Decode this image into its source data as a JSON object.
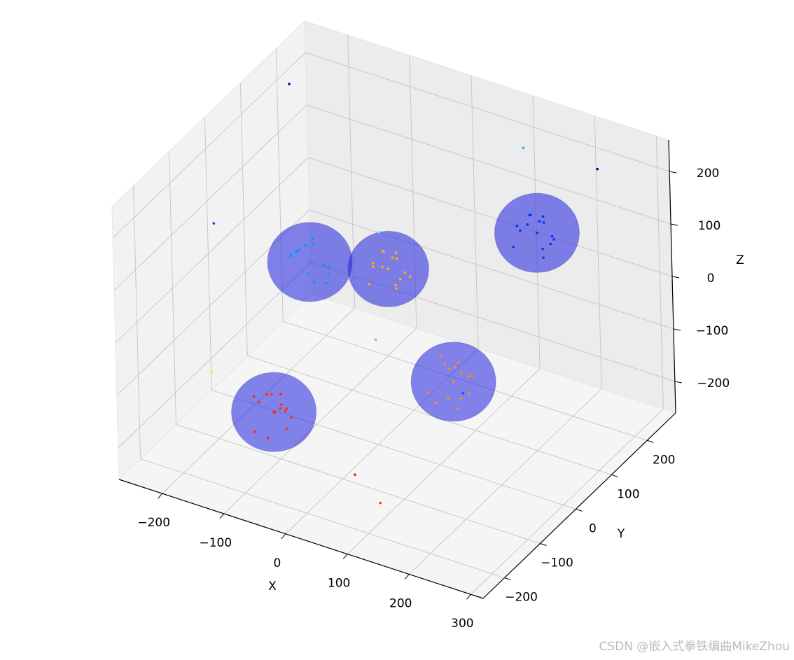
{
  "chart_data": {
    "type": "scatter3d",
    "xlabel": "X",
    "ylabel": "Y",
    "zlabel": "Z",
    "xlim": [
      -270,
      320
    ],
    "ylim": [
      -260,
      280
    ],
    "zlim": [
      -260,
      260
    ],
    "xticks": [
      {
        "value": -200,
        "label": "−200"
      },
      {
        "value": -100,
        "label": "−100"
      },
      0,
      100,
      200,
      300
    ],
    "yticks": [
      {
        "value": -200,
        "label": "−200"
      },
      {
        "value": -100,
        "label": "−100"
      },
      0,
      100,
      200
    ],
    "zticks": [
      {
        "value": -200,
        "label": "−200"
      },
      {
        "value": -100,
        "label": "−100"
      },
      0,
      100,
      200
    ],
    "grid": true,
    "sphere_color": "#2020e0",
    "spheres": [
      {
        "cx": -93,
        "cy": -128,
        "cz": -150,
        "radius": 65
      },
      {
        "cx": 120,
        "cy": 9,
        "cz": -100,
        "radius": 65
      },
      {
        "cx": -69,
        "cy": -59,
        "cz": 100,
        "radius": 65
      },
      {
        "cx": 1,
        "cy": 38,
        "cz": 50,
        "radius": 62
      },
      {
        "cx": 203,
        "cy": 109,
        "cz": 150,
        "radius": 65
      }
    ],
    "series": [
      {
        "color": "#ff2a00",
        "x": [
          -93,
          -110,
          -75,
          -120,
          -60,
          -98,
          -85,
          -130,
          -70,
          -100,
          -80,
          -115,
          -90,
          -65,
          -105
        ],
        "y": [
          -128,
          -140,
          -110,
          -100,
          -150,
          -125,
          -160,
          -120,
          -135,
          -95,
          -130,
          -145,
          -115,
          -140,
          -105
        ],
        "z": [
          -150,
          -130,
          -165,
          -145,
          -155,
          -120,
          -175,
          -140,
          -135,
          -160,
          -110,
          -185,
          -150,
          -125,
          -170
        ]
      },
      {
        "color": "#ff9000",
        "x": [
          120,
          100,
          140,
          110,
          150,
          125,
          90,
          135,
          115,
          105,
          145,
          128,
          98,
          118,
          132
        ],
        "y": [
          9,
          20,
          -5,
          30,
          0,
          15,
          -10,
          25,
          5,
          -15,
          18,
          -20,
          12,
          35,
          -2
        ],
        "z": [
          -100,
          -80,
          -115,
          -90,
          -105,
          -65,
          -120,
          -95,
          -75,
          -130,
          -85,
          -110,
          -60,
          -100,
          -140
        ]
      },
      {
        "color": "#0099ff",
        "x": [
          -69,
          -85,
          -50,
          -95,
          -60,
          -75,
          -40,
          -80,
          -65,
          -90,
          -55,
          -70,
          -100,
          -45,
          -78
        ],
        "y": [
          -59,
          -70,
          -40,
          -50,
          -80,
          -60,
          -65,
          -30,
          -55,
          -75,
          -45,
          -85,
          -60,
          -50,
          -35
        ],
        "z": [
          100,
          120,
          85,
          105,
          95,
          130,
          75,
          110,
          60,
          115,
          90,
          140,
          100,
          80,
          125
        ]
      },
      {
        "color": "#ffb000",
        "x": [
          1,
          -15,
          20,
          -5,
          25,
          10,
          -20,
          5,
          15,
          -10,
          30,
          0,
          -25,
          12,
          8
        ],
        "y": [
          38,
          50,
          25,
          60,
          30,
          45,
          20,
          55,
          35,
          15,
          48,
          28,
          40,
          65,
          10
        ],
        "z": [
          50,
          70,
          35,
          55,
          45,
          80,
          25,
          60,
          20,
          65,
          40,
          90,
          50,
          30,
          75
        ]
      },
      {
        "color": "#0030f0",
        "x": [
          203,
          185,
          220,
          195,
          230,
          210,
          175,
          205,
          215,
          190,
          225,
          200,
          170,
          212,
          198
        ],
        "y": [
          109,
          120,
          95,
          130,
          100,
          115,
          90,
          125,
          105,
          85,
          118,
          98,
          110,
          135,
          92
        ],
        "z": [
          150,
          170,
          135,
          155,
          145,
          180,
          125,
          160,
          110,
          165,
          140,
          190,
          150,
          130,
          175
        ]
      },
      {
        "colors": [
          "#000099",
          "#0044ff",
          "#33aaff",
          "#000099",
          "#ffee00",
          "#ff2200",
          "#0055ff",
          "#66ffcc",
          "#ff4400",
          "#ff9966"
        ],
        "x": [
          -250,
          -200,
          100,
          250,
          -150,
          50,
          200,
          -50,
          150,
          0
        ],
        "y": [
          200,
          -100,
          250,
          200,
          -200,
          -150,
          -100,
          100,
          -250,
          0
        ],
        "z": [
          200,
          150,
          180,
          230,
          -50,
          -200,
          -20,
          60,
          -150,
          -60
        ]
      }
    ],
    "watermark": "CSDN @嵌入式拳铁编曲MikeZhou"
  }
}
